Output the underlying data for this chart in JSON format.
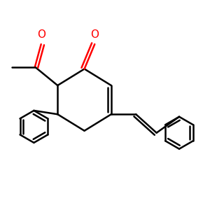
{
  "bg_color": "#ffffff",
  "bond_color": "#000000",
  "oxygen_color": "#ff0000",
  "line_width": 1.8,
  "figsize": [
    3.0,
    3.0
  ],
  "dpi": 100,
  "xlim": [
    -2.5,
    7.5
  ],
  "ylim": [
    -4.5,
    4.0
  ]
}
